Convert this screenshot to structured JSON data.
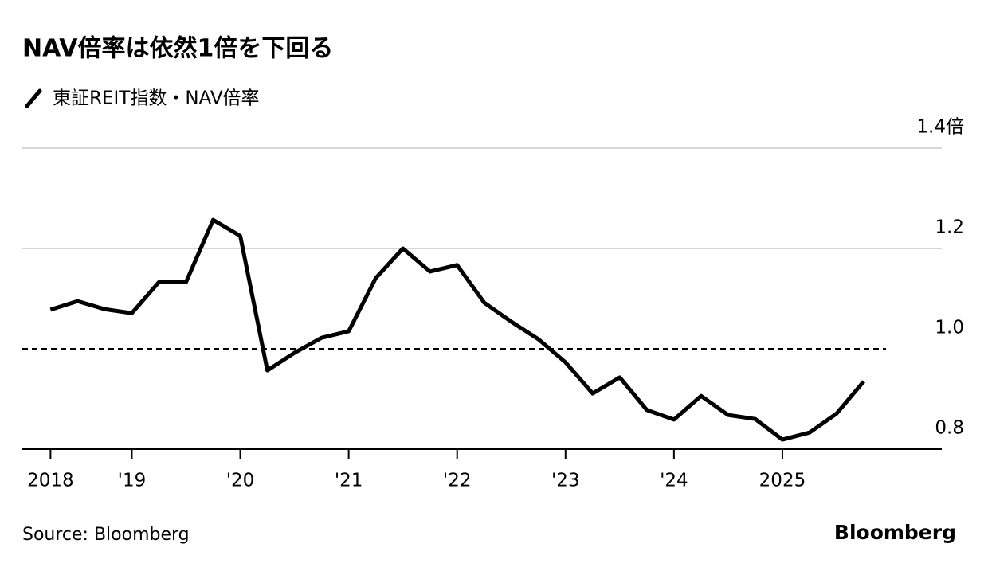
{
  "chart_data": {
    "type": "line",
    "title": "NAV倍率は依然1倍を下回る",
    "source": "Source: Bloomberg",
    "brand": "Bloomberg",
    "x": [
      2018.25,
      2018.5,
      2018.75,
      2019.0,
      2019.25,
      2019.5,
      2019.75,
      2020.0,
      2020.25,
      2020.5,
      2020.75,
      2021.0,
      2021.25,
      2021.5,
      2021.75,
      2022.0,
      2022.25,
      2022.5,
      2022.75,
      2023.0,
      2023.25,
      2023.5,
      2023.75,
      2024.0,
      2024.25,
      2024.5,
      2024.75,
      2025.0,
      2025.25,
      2025.5,
      2025.75
    ],
    "series": [
      {
        "name": "東証REIT指数・NAV倍率",
        "color": "#000000",
        "values": [
          1.078,
          1.095,
          1.079,
          1.071,
          1.133,
          1.133,
          1.257,
          1.225,
          0.957,
          0.992,
          1.022,
          1.035,
          1.141,
          1.2,
          1.154,
          1.167,
          1.092,
          1.054,
          1.019,
          0.973,
          0.911,
          0.943,
          0.878,
          0.859,
          0.906,
          0.868,
          0.86,
          0.819,
          0.833,
          0.871,
          0.935
        ]
      }
    ],
    "xlim": [
      2017.99,
      2026.47
    ],
    "xticks": [
      {
        "value": 2018.25,
        "label": "2018"
      },
      {
        "value": 2019,
        "label": "'19"
      },
      {
        "value": 2020,
        "label": "'20"
      },
      {
        "value": 2021,
        "label": "'21"
      },
      {
        "value": 2022,
        "label": "'22"
      },
      {
        "value": 2023,
        "label": "'23"
      },
      {
        "value": 2024,
        "label": "'24"
      },
      {
        "value": 2025,
        "label": "2025"
      }
    ],
    "ylim": [
      0.8,
      1.4
    ],
    "yticks": [
      {
        "value": 1.4,
        "label": "1.4倍"
      },
      {
        "value": 1.2,
        "label": "1.2"
      },
      {
        "value": 1.0,
        "label": "1.0"
      },
      {
        "value": 0.8,
        "label": "0.8"
      }
    ],
    "reference_y": 1.0,
    "grid": true
  }
}
